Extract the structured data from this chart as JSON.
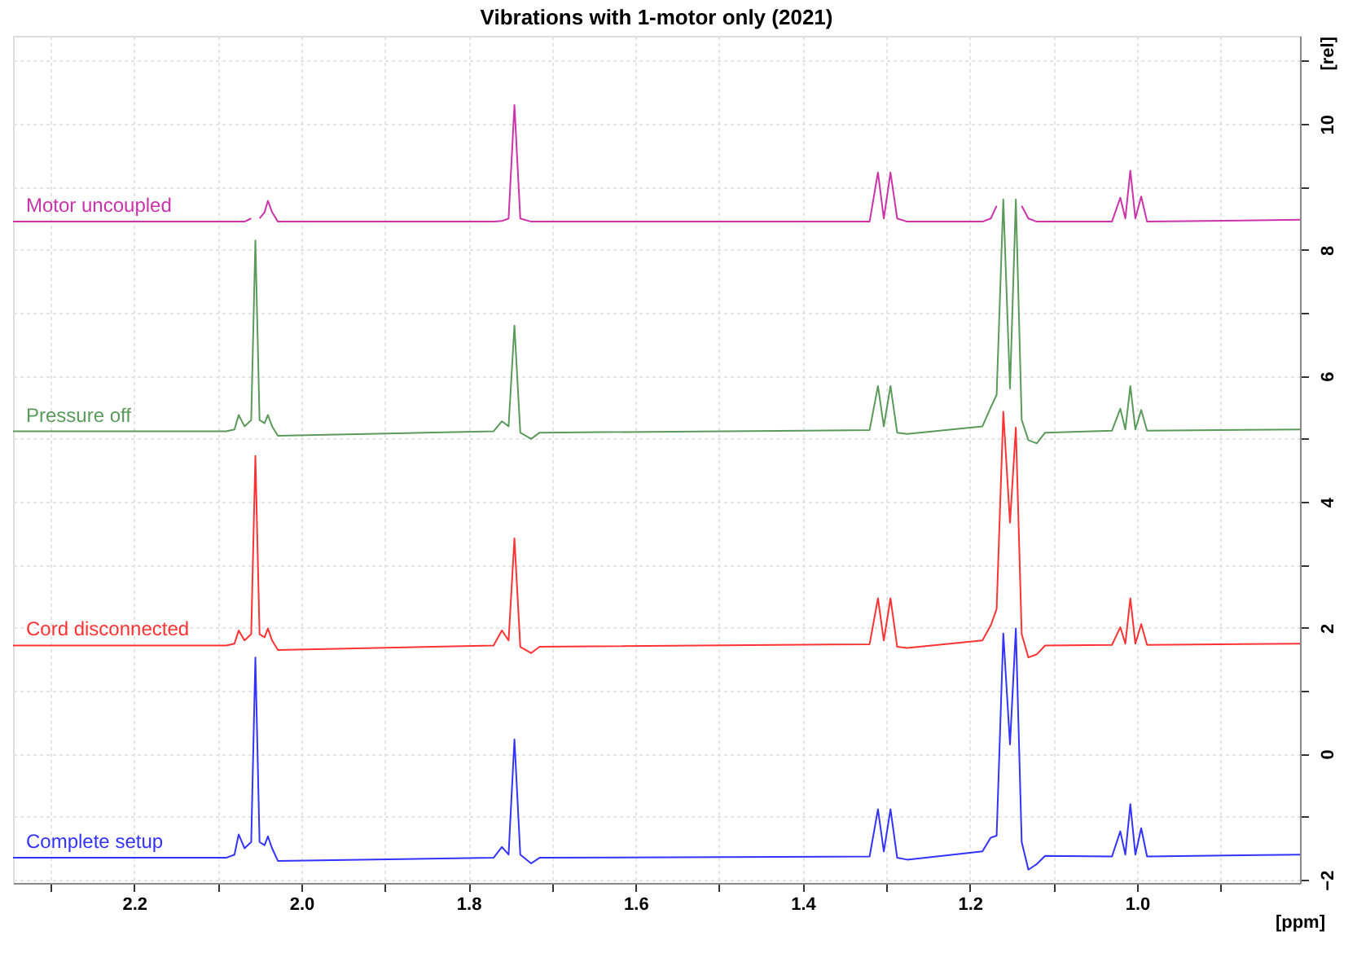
{
  "chart_data": {
    "type": "line",
    "title": "Vibrations with 1-motor only (2021)",
    "xlabel": "[ppm]",
    "ylabel": "[rel]",
    "x": [
      2.345,
      2.09,
      2.08,
      2.075,
      2.068,
      2.06,
      2.055,
      2.05,
      2.044,
      2.04,
      2.035,
      2.028,
      1.77,
      1.76,
      1.752,
      1.745,
      1.738,
      1.725,
      1.715,
      1.32,
      1.31,
      1.303,
      1.295,
      1.287,
      1.275,
      1.185,
      1.175,
      1.168,
      1.16,
      1.152,
      1.145,
      1.138,
      1.13,
      1.12,
      1.11,
      1.03,
      1.02,
      1.014,
      1.008,
      1.002,
      0.995,
      0.988,
      0.805
    ],
    "series": [
      {
        "name": "Motor uncoupled",
        "color": "#cc33aa",
        "values": [
          8.45,
          8.45,
          8.45,
          8.45,
          8.45,
          8.5,
          null,
          8.5,
          8.6,
          8.78,
          8.6,
          8.45,
          8.45,
          8.46,
          8.5,
          10.3,
          8.5,
          8.45,
          8.45,
          8.45,
          9.23,
          8.5,
          9.23,
          8.5,
          8.45,
          8.45,
          8.5,
          8.7,
          null,
          null,
          null,
          8.7,
          8.5,
          8.45,
          8.45,
          8.45,
          8.83,
          8.5,
          9.26,
          8.5,
          8.85,
          8.45,
          8.48
        ]
      },
      {
        "name": "Pressure off",
        "color": "#5a9a5a",
        "values": [
          5.12,
          5.12,
          5.15,
          5.38,
          5.2,
          5.3,
          8.15,
          5.3,
          5.25,
          5.38,
          5.2,
          5.05,
          5.12,
          5.28,
          5.2,
          6.8,
          5.1,
          5.0,
          5.1,
          5.14,
          5.84,
          5.2,
          5.84,
          5.1,
          5.08,
          5.2,
          5.5,
          5.7,
          8.8,
          5.8,
          8.8,
          5.3,
          4.98,
          4.93,
          5.1,
          5.13,
          5.48,
          5.15,
          5.84,
          5.15,
          5.46,
          5.13,
          5.15
        ]
      },
      {
        "name": "Cord disconnected",
        "color": "#ff3333",
        "values": [
          1.72,
          1.72,
          1.75,
          1.96,
          1.8,
          1.9,
          4.73,
          1.9,
          1.85,
          1.99,
          1.8,
          1.65,
          1.72,
          1.96,
          1.8,
          3.42,
          1.7,
          1.6,
          1.7,
          1.74,
          2.47,
          1.8,
          2.47,
          1.7,
          1.68,
          1.8,
          2.04,
          2.3,
          5.43,
          3.67,
          5.18,
          1.9,
          1.53,
          1.58,
          1.72,
          1.73,
          2.01,
          1.75,
          2.47,
          1.75,
          2.06,
          1.73,
          1.75
        ]
      },
      {
        "name": "Complete setup",
        "color": "#3333ff",
        "values": [
          -1.65,
          -1.65,
          -1.6,
          -1.28,
          -1.5,
          -1.4,
          1.53,
          -1.4,
          -1.45,
          -1.31,
          -1.5,
          -1.7,
          -1.65,
          -1.48,
          -1.6,
          0.23,
          -1.6,
          -1.74,
          -1.65,
          -1.63,
          -0.88,
          -1.55,
          -0.88,
          -1.65,
          -1.68,
          -1.55,
          -1.33,
          -1.3,
          1.91,
          0.15,
          1.99,
          -1.4,
          -1.84,
          -1.75,
          -1.62,
          -1.63,
          -1.23,
          -1.6,
          -0.8,
          -1.6,
          -1.18,
          -1.63,
          -1.6
        ]
      }
    ],
    "xlim": [
      2.345,
      0.805
    ],
    "xticks": [
      {
        "value": 2.3,
        "label": null
      },
      2.2,
      {
        "value": 2.1,
        "label": null
      },
      {
        "value": 2.0,
        "label": "2.0"
      },
      {
        "value": 1.9,
        "label": null
      },
      1.8,
      {
        "value": 1.7,
        "label": null
      },
      1.6,
      {
        "value": 1.5,
        "label": null
      },
      1.4,
      {
        "value": 1.3,
        "label": null
      },
      1.2,
      {
        "value": 1.1,
        "label": null
      },
      {
        "value": 1.0,
        "label": "1.0"
      },
      {
        "value": 0.9,
        "label": null
      }
    ],
    "ylim": [
      -2.05,
      11.4
    ],
    "yticks": [
      -2,
      {
        "value": -1,
        "label": null
      },
      0,
      {
        "value": 1,
        "label": null
      },
      2,
      {
        "value": 3,
        "label": null
      },
      4,
      {
        "value": 5,
        "label": null
      },
      6,
      {
        "value": 7,
        "label": null
      },
      8,
      {
        "value": 9,
        "label": null
      },
      10,
      {
        "value": 11,
        "label": null
      }
    ],
    "grid": true,
    "legend": false,
    "marker": "none",
    "line_style": "solid"
  }
}
